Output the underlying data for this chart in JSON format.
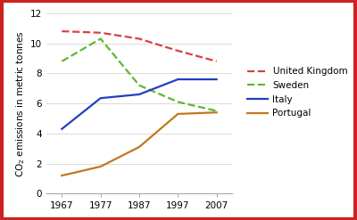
{
  "years": [
    1967,
    1977,
    1987,
    1997,
    2007
  ],
  "series": {
    "United Kingdom": [
      10.8,
      10.7,
      10.3,
      9.5,
      8.8
    ],
    "Sweden": [
      8.8,
      10.3,
      7.2,
      6.1,
      5.5
    ],
    "Italy": [
      4.3,
      6.35,
      6.6,
      7.6,
      7.6
    ],
    "Portugal": [
      1.2,
      1.8,
      3.1,
      5.3,
      5.4
    ]
  },
  "colors": {
    "United Kingdom": "#d94040",
    "Sweden": "#5cb830",
    "Italy": "#2040c0",
    "Portugal": "#c07820"
  },
  "linestyles": {
    "United Kingdom": "--",
    "Sweden": "--",
    "Italy": "-",
    "Portugal": "-"
  },
  "ylabel": "CO$_2$ emissions in metric tonnes",
  "ylim": [
    0,
    12
  ],
  "yticks": [
    0,
    2,
    4,
    6,
    8,
    10,
    12
  ],
  "plot_background": "#ffffff",
  "fig_background": "#ffffff",
  "border_color": "#cc2222",
  "legend_order": [
    "United Kingdom",
    "Sweden",
    "Italy",
    "Portugal"
  ]
}
